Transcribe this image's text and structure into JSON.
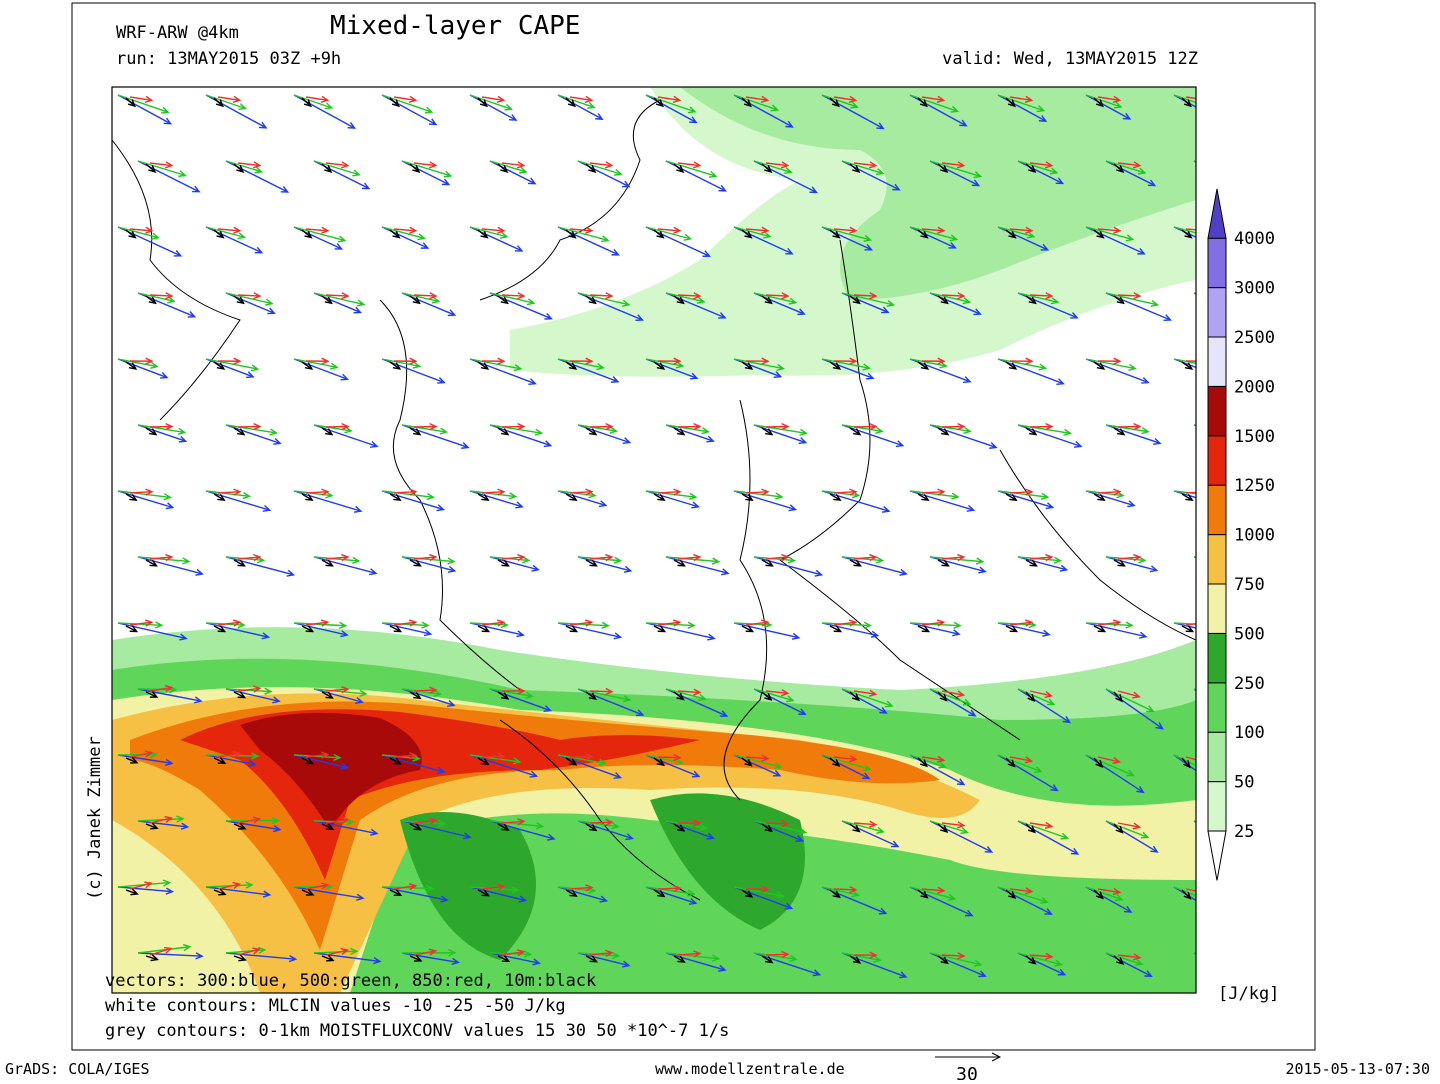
{
  "header": {
    "model": "WRF-ARW @4km",
    "title": "Mixed-layer CAPE",
    "run": "run: 13MAY2015 03Z +9h",
    "valid": "valid: Wed, 13MAY2015 12Z"
  },
  "colorbar": {
    "labels": [
      "25",
      "50",
      "100",
      "250",
      "500",
      "750",
      "1000",
      "1250",
      "1500",
      "2000",
      "2500",
      "3000",
      "4000"
    ],
    "colors": [
      "#ffffff",
      "#d4f7cc",
      "#a6eba0",
      "#5fd65a",
      "#2ea82c",
      "#f2f2a6",
      "#f6c044",
      "#f07a0a",
      "#e4260c",
      "#a80a0a",
      "#e4e4fa",
      "#b2a2f4",
      "#8070e4",
      "#5040c8"
    ],
    "unit": "[J/kg]"
  },
  "notes": [
    "vectors: 300:blue, 500:green, 850:red, 10m:black",
    "white contours: MLCIN values -10 -25 -50 J/kg",
    "grey contours: 0-1km MOISTFLUXCONV values 15 30 50 *10^-7 1/s"
  ],
  "credit": "(c) Janek Zimmer",
  "footer": {
    "left": "GrADS: COLA/IGES",
    "center": "www.modellzentrale.de",
    "scale": "30",
    "right": "2015-05-13-07:30"
  }
}
